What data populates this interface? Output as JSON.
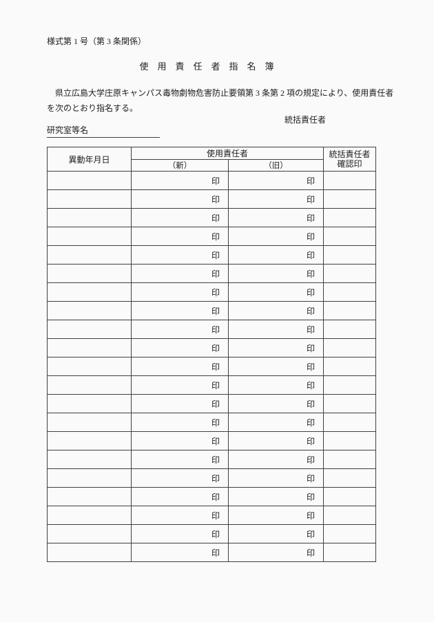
{
  "document": {
    "form_number": "様式第 1 号（第 3 条関係）",
    "title": "使　用　責　任　者　指　名　簿",
    "body_lines": [
      "　県立広島大学庄原キャンパス毒物劇物危害防止要領第 3 条第 2 項の規定により、使用責任者",
      "を次のとおり指名する。"
    ],
    "supervisor_label": "統括責任者",
    "lab_name_label": "研究室等名"
  },
  "table": {
    "headers": {
      "date": "異動年月日",
      "user_group": "使用責任者",
      "new": "（新）",
      "old": "（旧）",
      "confirm_line1": "統括責任者",
      "confirm_line2": "確認印"
    },
    "rows": [
      {
        "date": "",
        "new_stamp": "印",
        "old_stamp": "印",
        "confirm": ""
      },
      {
        "date": "",
        "new_stamp": "印",
        "old_stamp": "印",
        "confirm": ""
      },
      {
        "date": "",
        "new_stamp": "印",
        "old_stamp": "印",
        "confirm": ""
      },
      {
        "date": "",
        "new_stamp": "印",
        "old_stamp": "印",
        "confirm": ""
      },
      {
        "date": "",
        "new_stamp": "印",
        "old_stamp": "印",
        "confirm": ""
      },
      {
        "date": "",
        "new_stamp": "印",
        "old_stamp": "印",
        "confirm": ""
      },
      {
        "date": "",
        "new_stamp": "印",
        "old_stamp": "印",
        "confirm": ""
      },
      {
        "date": "",
        "new_stamp": "印",
        "old_stamp": "印",
        "confirm": ""
      },
      {
        "date": "",
        "new_stamp": "印",
        "old_stamp": "印",
        "confirm": ""
      },
      {
        "date": "",
        "new_stamp": "印",
        "old_stamp": "印",
        "confirm": ""
      },
      {
        "date": "",
        "new_stamp": "印",
        "old_stamp": "印",
        "confirm": ""
      },
      {
        "date": "",
        "new_stamp": "印",
        "old_stamp": "印",
        "confirm": ""
      },
      {
        "date": "",
        "new_stamp": "印",
        "old_stamp": "印",
        "confirm": ""
      },
      {
        "date": "",
        "new_stamp": "印",
        "old_stamp": "印",
        "confirm": ""
      },
      {
        "date": "",
        "new_stamp": "印",
        "old_stamp": "印",
        "confirm": ""
      },
      {
        "date": "",
        "new_stamp": "印",
        "old_stamp": "印",
        "confirm": ""
      },
      {
        "date": "",
        "new_stamp": "印",
        "old_stamp": "印",
        "confirm": ""
      },
      {
        "date": "",
        "new_stamp": "印",
        "old_stamp": "印",
        "confirm": ""
      },
      {
        "date": "",
        "new_stamp": "印",
        "old_stamp": "印",
        "confirm": ""
      },
      {
        "date": "",
        "new_stamp": "印",
        "old_stamp": "印",
        "confirm": ""
      },
      {
        "date": "",
        "new_stamp": "印",
        "old_stamp": "印",
        "confirm": ""
      }
    ]
  },
  "colors": {
    "page_background": "#fafafa",
    "ink": "#1c1c1c",
    "table_line": "#3f3f3f"
  }
}
